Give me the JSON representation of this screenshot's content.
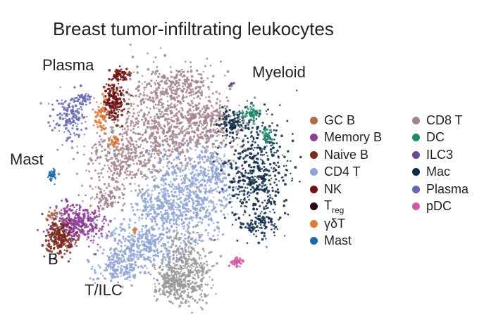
{
  "chart_data": {
    "type": "scatter",
    "title": "Breast tumor-infiltrating leukocytes",
    "xlabel": "",
    "ylabel": "",
    "axes_visible": false,
    "legend_position": "right",
    "cluster_annotations": [
      "Plasma",
      "Myeloid",
      "Mast",
      "B",
      "T/ILC"
    ],
    "legend": [
      {
        "name": "GC B",
        "color": "#b06a4a"
      },
      {
        "name": "Memory B",
        "color": "#8e3e96"
      },
      {
        "name": "Naive B",
        "color": "#7a2a1a"
      },
      {
        "name": "CD4 T",
        "color": "#8fa4d4"
      },
      {
        "name": "NK",
        "color": "#6e1410"
      },
      {
        "name": "T",
        "sub": "reg",
        "color": "#2a0a12"
      },
      {
        "name": "γδT",
        "color": "#e07a38"
      },
      {
        "name": "Mast",
        "color": "#1f6aa8"
      },
      {
        "name": "CD8 T",
        "color": "#a3848a"
      },
      {
        "name": "DC",
        "color": "#1f8a6a"
      },
      {
        "name": "ILC3",
        "color": "#6a4a9a"
      },
      {
        "name": "Mac",
        "color": "#0f2a48"
      },
      {
        "name": "Plasma",
        "color": "#6468b0"
      },
      {
        "name": "pDC",
        "color": "#d05aa6"
      }
    ]
  }
}
